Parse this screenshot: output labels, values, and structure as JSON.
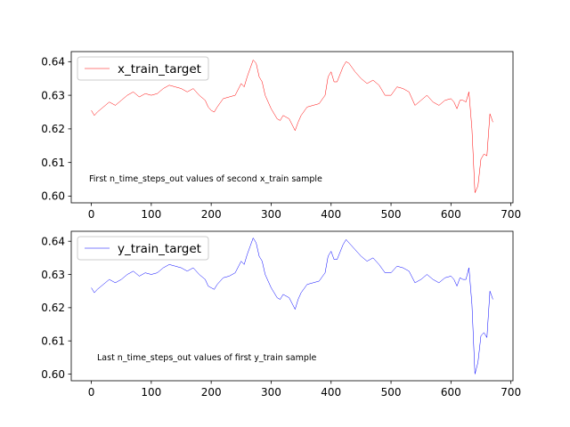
{
  "chart_data": [
    {
      "type": "line",
      "title": "",
      "xlabel": "",
      "ylabel": "",
      "xlim": [
        -33.5,
        703.5
      ],
      "ylim": [
        0.598,
        0.643
      ],
      "xticks": [
        0,
        100,
        200,
        300,
        400,
        500,
        600,
        700
      ],
      "xtick_labels": [
        "0",
        "100",
        "200",
        "300",
        "400",
        "500",
        "600",
        "700"
      ],
      "yticks": [
        0.6,
        0.61,
        0.62,
        0.63,
        0.64
      ],
      "ytick_labels": [
        "0.60",
        "0.61",
        "0.62",
        "0.63",
        "0.64"
      ],
      "grid": false,
      "legend_position": "upper-left",
      "annotation": "First n_time_steps_out values of second x_train sample",
      "series": [
        {
          "name": "x_train_target",
          "color": "#ff0000",
          "x": [
            0,
            5,
            10,
            20,
            30,
            40,
            50,
            60,
            70,
            80,
            90,
            100,
            110,
            120,
            130,
            140,
            150,
            160,
            170,
            180,
            190,
            195,
            200,
            205,
            210,
            220,
            230,
            240,
            250,
            255,
            260,
            265,
            270,
            275,
            280,
            285,
            290,
            300,
            310,
            315,
            320,
            330,
            340,
            345,
            350,
            360,
            370,
            380,
            390,
            395,
            400,
            405,
            410,
            420,
            425,
            430,
            440,
            450,
            460,
            470,
            480,
            490,
            500,
            510,
            520,
            530,
            540,
            550,
            560,
            570,
            580,
            590,
            600,
            605,
            610,
            615,
            620,
            625,
            630,
            635,
            640,
            645,
            650,
            655,
            660,
            665,
            670
          ],
          "values": [
            0.6255,
            0.624,
            0.625,
            0.6265,
            0.628,
            0.627,
            0.6285,
            0.63,
            0.631,
            0.6295,
            0.6305,
            0.63,
            0.6305,
            0.632,
            0.633,
            0.6325,
            0.632,
            0.631,
            0.632,
            0.63,
            0.6285,
            0.6265,
            0.6255,
            0.625,
            0.6265,
            0.629,
            0.6295,
            0.63,
            0.6335,
            0.6325,
            0.6355,
            0.638,
            0.6405,
            0.6395,
            0.6355,
            0.634,
            0.63,
            0.626,
            0.623,
            0.6225,
            0.624,
            0.623,
            0.6195,
            0.622,
            0.624,
            0.6265,
            0.627,
            0.6275,
            0.63,
            0.6355,
            0.637,
            0.634,
            0.634,
            0.6385,
            0.64,
            0.6395,
            0.637,
            0.635,
            0.6335,
            0.6345,
            0.633,
            0.63,
            0.63,
            0.6325,
            0.632,
            0.631,
            0.627,
            0.6285,
            0.63,
            0.628,
            0.627,
            0.6285,
            0.629,
            0.628,
            0.626,
            0.6285,
            0.6285,
            0.628,
            0.631,
            0.62,
            0.601,
            0.603,
            0.611,
            0.6125,
            0.612,
            0.6245,
            0.622
          ]
        }
      ]
    },
    {
      "type": "line",
      "title": "",
      "xlabel": "",
      "ylabel": "",
      "xlim": [
        -33.5,
        703.5
      ],
      "ylim": [
        0.598,
        0.643
      ],
      "xticks": [
        0,
        100,
        200,
        300,
        400,
        500,
        600,
        700
      ],
      "xtick_labels": [
        "0",
        "100",
        "200",
        "300",
        "400",
        "500",
        "600",
        "700"
      ],
      "yticks": [
        0.6,
        0.61,
        0.62,
        0.63,
        0.64
      ],
      "ytick_labels": [
        "0.60",
        "0.61",
        "0.62",
        "0.63",
        "0.64"
      ],
      "grid": false,
      "legend_position": "upper-left",
      "annotation": "Last n_time_steps_out values of first y_train sample",
      "series": [
        {
          "name": "y_train_target",
          "color": "#0000ff",
          "x": [
            0,
            5,
            10,
            20,
            30,
            40,
            50,
            60,
            70,
            80,
            90,
            100,
            110,
            120,
            130,
            140,
            150,
            160,
            170,
            180,
            190,
            195,
            200,
            205,
            210,
            220,
            230,
            240,
            250,
            255,
            260,
            265,
            270,
            275,
            280,
            285,
            290,
            300,
            310,
            315,
            320,
            330,
            340,
            345,
            350,
            360,
            370,
            380,
            390,
            395,
            400,
            405,
            410,
            420,
            425,
            430,
            440,
            450,
            460,
            470,
            480,
            490,
            500,
            510,
            520,
            530,
            540,
            550,
            560,
            570,
            580,
            590,
            600,
            605,
            610,
            615,
            620,
            625,
            630,
            635,
            640,
            645,
            650,
            655,
            660,
            665,
            670
          ],
          "values": [
            0.626,
            0.6245,
            0.6255,
            0.627,
            0.6285,
            0.6275,
            0.6285,
            0.63,
            0.631,
            0.6295,
            0.6305,
            0.63,
            0.6305,
            0.632,
            0.633,
            0.6325,
            0.632,
            0.631,
            0.632,
            0.63,
            0.6285,
            0.6265,
            0.626,
            0.6255,
            0.627,
            0.629,
            0.6295,
            0.6305,
            0.634,
            0.633,
            0.636,
            0.6385,
            0.641,
            0.6395,
            0.6355,
            0.634,
            0.63,
            0.626,
            0.623,
            0.6225,
            0.624,
            0.623,
            0.6195,
            0.6225,
            0.6245,
            0.627,
            0.6275,
            0.628,
            0.6305,
            0.6355,
            0.637,
            0.6345,
            0.6345,
            0.639,
            0.6405,
            0.6395,
            0.6375,
            0.6355,
            0.634,
            0.635,
            0.633,
            0.6305,
            0.6305,
            0.6325,
            0.632,
            0.631,
            0.6275,
            0.6285,
            0.63,
            0.6285,
            0.6275,
            0.629,
            0.6295,
            0.6285,
            0.6265,
            0.629,
            0.6285,
            0.6285,
            0.632,
            0.621,
            0.6,
            0.6035,
            0.6115,
            0.6125,
            0.611,
            0.625,
            0.6225
          ]
        }
      ]
    }
  ]
}
